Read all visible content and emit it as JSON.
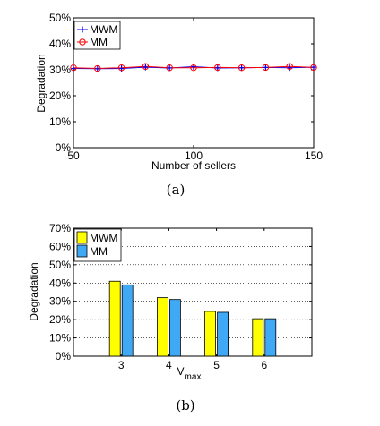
{
  "chart_data": [
    {
      "type": "line",
      "caption": "(a)",
      "xlabel": "Number of sellers",
      "ylabel": "Degradation",
      "xlim": [
        50,
        150
      ],
      "ylim": [
        0,
        50
      ],
      "x_ticks": [
        "50",
        "100",
        "150"
      ],
      "y_ticks": [
        "0%",
        "10%",
        "20%",
        "30%",
        "40%",
        "50%"
      ],
      "grid": false,
      "legend_placement": "top-left",
      "x": [
        50,
        60,
        70,
        80,
        90,
        100,
        110,
        120,
        130,
        140,
        150
      ],
      "series": [
        {
          "name": "MWM",
          "marker": "plus",
          "color": "#0000ff",
          "values": [
            30.5,
            30.4,
            30.5,
            31.0,
            30.7,
            31.2,
            30.7,
            30.8,
            30.9,
            30.8,
            31.0
          ]
        },
        {
          "name": "MM",
          "marker": "circle",
          "color": "#ff0000",
          "values": [
            30.8,
            30.5,
            30.8,
            31.3,
            30.8,
            30.8,
            30.9,
            30.8,
            30.9,
            31.3,
            30.9
          ]
        }
      ]
    },
    {
      "type": "bar",
      "caption": "(b)",
      "xlabel": "V",
      "xlabel_sub": "max",
      "ylabel": "Degradation",
      "categories": [
        "3",
        "4",
        "5",
        "6"
      ],
      "ylim": [
        0,
        70
      ],
      "y_ticks": [
        "0%",
        "10%",
        "20%",
        "30%",
        "40%",
        "50%",
        "60%",
        "70%"
      ],
      "grid": true,
      "legend_placement": "top-left",
      "series": [
        {
          "name": "MWM",
          "color": "#ffff00",
          "values": [
            41,
            32,
            24.5,
            20.5
          ]
        },
        {
          "name": "MM",
          "color": "#3fa9f5",
          "values": [
            39,
            31,
            24,
            20.5
          ]
        }
      ]
    }
  ]
}
